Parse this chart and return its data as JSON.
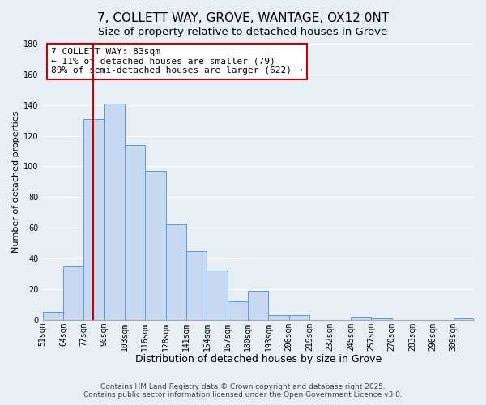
{
  "title": "7, COLLETT WAY, GROVE, WANTAGE, OX12 0NT",
  "subtitle": "Size of property relative to detached houses in Grove",
  "xlabel": "Distribution of detached houses by size in Grove",
  "ylabel": "Number of detached properties",
  "bin_labels": [
    "51sqm",
    "64sqm",
    "77sqm",
    "90sqm",
    "103sqm",
    "116sqm",
    "128sqm",
    "141sqm",
    "154sqm",
    "167sqm",
    "180sqm",
    "193sqm",
    "206sqm",
    "219sqm",
    "232sqm",
    "245sqm",
    "257sqm",
    "270sqm",
    "283sqm",
    "296sqm",
    "309sqm"
  ],
  "bar_heights": [
    5,
    35,
    131,
    141,
    114,
    97,
    62,
    45,
    32,
    12,
    19,
    3,
    3,
    0,
    0,
    2,
    1,
    0,
    0,
    0,
    1
  ],
  "bar_color": "#c6d9f0",
  "bar_edgecolor": "#5b9bd5",
  "vline_bin_index": 2.75,
  "vline_color": "#cc0000",
  "annotation_text": "7 COLLETT WAY: 83sqm\n← 11% of detached houses are smaller (79)\n89% of semi-detached houses are larger (622) →",
  "annotation_box_edgecolor": "#cc0000",
  "annotation_box_facecolor": "#ffffff",
  "ylim": [
    0,
    180
  ],
  "yticks": [
    0,
    20,
    40,
    60,
    80,
    100,
    120,
    140,
    160,
    180
  ],
  "background_color": "#e8eef5",
  "grid_color": "#ffffff",
  "footer_line1": "Contains HM Land Registry data © Crown copyright and database right 2025.",
  "footer_line2": "Contains public sector information licensed under the Open Government Licence v3.0.",
  "title_fontsize": 11,
  "subtitle_fontsize": 9.5,
  "xlabel_fontsize": 9,
  "ylabel_fontsize": 8,
  "tick_fontsize": 7,
  "annotation_fontsize": 8,
  "footer_fontsize": 6.5
}
